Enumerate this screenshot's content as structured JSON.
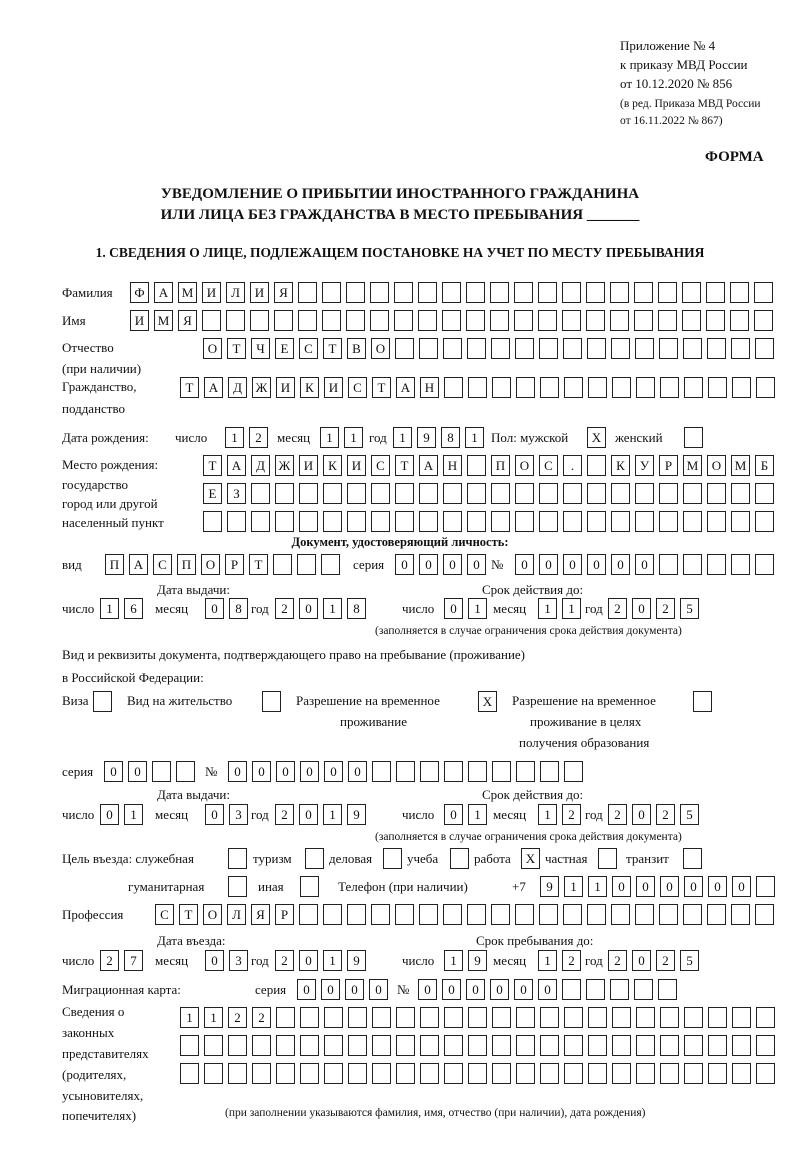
{
  "header": {
    "appendix": [
      "Приложение № 4",
      "к приказу МВД России",
      "от 10.12.2020 № 856"
    ],
    "revision": [
      "(в ред. Приказа МВД России",
      "от 16.11.2022 № 867)"
    ],
    "form_label": "ФОРМА",
    "title": [
      "УВЕДОМЛЕНИЕ О ПРИБЫТИИ ИНОСТРАННОГО ГРАЖДАНИНА",
      "ИЛИ ЛИЦА БЕЗ ГРАЖДАНСТВА В МЕСТО ПРЕБЫВАНИЯ _______"
    ],
    "section1": "1. СВЕДЕНИЯ О ЛИЦЕ, ПОДЛЕЖАЩЕМ ПОСТАНОВКЕ НА УЧЕТ ПО МЕСТУ ПРЕБЫВАНИЯ"
  },
  "labels": {
    "surname": "Фамилия",
    "name": "Имя",
    "patronymic": "Отчество",
    "patronymic_note": "(при наличии)",
    "citizenship": "Гражданство,",
    "citizenship2": "подданство",
    "birth_date": "Дата рождения:",
    "day": "число",
    "month": "месяц",
    "year": "год",
    "sex": "Пол: мужской",
    "female": "женский",
    "birthplace": [
      "Место рождения:",
      "государство",
      "город или другой",
      "населенный пункт"
    ],
    "id_doc": "Документ, удостоверяющий личность:",
    "kind": "вид",
    "series": "серия",
    "number": "№",
    "issue_date": "Дата выдачи:",
    "valid_until": "Срок действия до:",
    "validity_note": "(заполняется в случае ограничения срока действия документа)",
    "right_doc": "Вид и реквизиты документа, подтверждающего право на пребывание (проживание)",
    "right_doc2": "в Российской Федерации:",
    "visa": "Виза",
    "residence": "Вид на жительство",
    "temp_res": [
      "Разрешение на временное",
      "проживание"
    ],
    "temp_res_edu": [
      "Разрешение на временное",
      "проживание в целях",
      "получения образования"
    ],
    "purpose": "Цель въезда: служебная",
    "tourism": "туризм",
    "business": "деловая",
    "study": "учеба",
    "work": "работа",
    "private": "частная",
    "transit": "транзит",
    "humanitarian": "гуманитарная",
    "other": "иная",
    "phone": "Телефон (при наличии)",
    "phone_prefix": "+7",
    "profession": "Профессия",
    "entry_date": "Дата въезда:",
    "stay_until": "Срок пребывания до:",
    "migration_card": "Миграционная карта:",
    "reps": [
      "Сведения о",
      "законных",
      "представителях",
      "(родителях,",
      "усыновителях,",
      "попечителях)"
    ],
    "reps_note": "(при заполнении указываются фамилия, имя, отчество (при наличии), дата рождения)"
  },
  "fields": {
    "surname": [
      "Ф",
      "А",
      "М",
      "И",
      "Л",
      "И",
      "Я",
      "",
      "",
      "",
      "",
      "",
      "",
      "",
      "",
      "",
      "",
      "",
      "",
      "",
      "",
      "",
      "",
      "",
      "",
      "",
      ""
    ],
    "name": [
      "И",
      "М",
      "Я",
      "",
      "",
      "",
      "",
      "",
      "",
      "",
      "",
      "",
      "",
      "",
      "",
      "",
      "",
      "",
      "",
      "",
      "",
      "",
      "",
      "",
      "",
      "",
      ""
    ],
    "patronymic": [
      "О",
      "Т",
      "Ч",
      "Е",
      "С",
      "Т",
      "В",
      "О",
      "",
      "",
      "",
      "",
      "",
      "",
      "",
      "",
      "",
      "",
      "",
      "",
      "",
      "",
      "",
      ""
    ],
    "citizenship": [
      "Т",
      "А",
      "Д",
      "Ж",
      "И",
      "К",
      "И",
      "С",
      "Т",
      "А",
      "Н",
      "",
      "",
      "",
      "",
      "",
      "",
      "",
      "",
      "",
      "",
      "",
      "",
      "",
      ""
    ],
    "birth_day": [
      "1",
      "2"
    ],
    "birth_month": [
      "1",
      "1"
    ],
    "birth_year": [
      "1",
      "9",
      "8",
      "1"
    ],
    "male": [
      "X"
    ],
    "female": [
      ""
    ],
    "birthplace1": [
      "Т",
      "А",
      "Д",
      "Ж",
      "И",
      "К",
      "И",
      "С",
      "Т",
      "А",
      "Н",
      "",
      "П",
      "О",
      "С",
      ".",
      "",
      "К",
      "У",
      "Р",
      "М",
      "О",
      "М",
      "Б"
    ],
    "birthplace2": [
      "Е",
      "З",
      "",
      "",
      "",
      "",
      "",
      "",
      "",
      "",
      "",
      "",
      "",
      "",
      "",
      "",
      "",
      "",
      "",
      "",
      "",
      "",
      "",
      ""
    ],
    "birthplace3": [
      "",
      "",
      "",
      "",
      "",
      "",
      "",
      "",
      "",
      "",
      "",
      "",
      "",
      "",
      "",
      "",
      "",
      "",
      "",
      "",
      "",
      "",
      "",
      ""
    ],
    "doc_kind": [
      "П",
      "А",
      "С",
      "П",
      "О",
      "Р",
      "Т",
      "",
      "",
      ""
    ],
    "doc_series": [
      "0",
      "0",
      "0",
      "0"
    ],
    "doc_number": [
      "0",
      "0",
      "0",
      "0",
      "0",
      "0",
      "",
      "",
      "",
      "",
      ""
    ],
    "doc_issue_day": [
      "1",
      "6"
    ],
    "doc_issue_month": [
      "0",
      "8"
    ],
    "doc_issue_year": [
      "2",
      "0",
      "1",
      "8"
    ],
    "doc_valid_day": [
      "0",
      "1"
    ],
    "doc_valid_month": [
      "1",
      "1"
    ],
    "doc_valid_year": [
      "2",
      "0",
      "2",
      "5"
    ],
    "visa": [
      ""
    ],
    "residence": [
      ""
    ],
    "temp_res": [
      "X"
    ],
    "temp_res_edu": [
      ""
    ],
    "right_series": [
      "0",
      "0",
      "",
      ""
    ],
    "right_number": [
      "0",
      "0",
      "0",
      "0",
      "0",
      "0",
      "",
      "",
      "",
      "",
      "",
      "",
      "",
      "",
      ""
    ],
    "right_issue_day": [
      "0",
      "1"
    ],
    "right_issue_month": [
      "0",
      "3"
    ],
    "right_issue_year": [
      "2",
      "0",
      "1",
      "9"
    ],
    "right_valid_day": [
      "0",
      "1"
    ],
    "right_valid_month": [
      "1",
      "2"
    ],
    "right_valid_year": [
      "2",
      "0",
      "2",
      "5"
    ],
    "purpose_service": [
      ""
    ],
    "purpose_tourism": [
      ""
    ],
    "purpose_business": [
      ""
    ],
    "purpose_study": [
      ""
    ],
    "purpose_work": [
      "X"
    ],
    "purpose_private": [
      ""
    ],
    "purpose_transit": [
      ""
    ],
    "purpose_humanitarian": [
      ""
    ],
    "purpose_other": [
      ""
    ],
    "phone": [
      "9",
      "1",
      "1",
      "0",
      "0",
      "0",
      "0",
      "0",
      "0",
      ""
    ],
    "profession": [
      "С",
      "Т",
      "О",
      "Л",
      "Я",
      "Р",
      "",
      "",
      "",
      "",
      "",
      "",
      "",
      "",
      "",
      "",
      "",
      "",
      "",
      "",
      "",
      "",
      "",
      "",
      "",
      ""
    ],
    "entry_day": [
      "2",
      "7"
    ],
    "entry_month": [
      "0",
      "3"
    ],
    "entry_year": [
      "2",
      "0",
      "1",
      "9"
    ],
    "stay_day": [
      "1",
      "9"
    ],
    "stay_month": [
      "1",
      "2"
    ],
    "stay_year": [
      "2",
      "0",
      "2",
      "5"
    ],
    "mc_series": [
      "0",
      "0",
      "0",
      "0"
    ],
    "mc_number": [
      "0",
      "0",
      "0",
      "0",
      "0",
      "0",
      "",
      "",
      "",
      "",
      ""
    ],
    "reps1": [
      "1",
      "1",
      "2",
      "2",
      "",
      "",
      "",
      "",
      "",
      "",
      "",
      "",
      "",
      "",
      "",
      "",
      "",
      "",
      "",
      "",
      "",
      "",
      "",
      "",
      ""
    ],
    "reps2": [
      "",
      "",
      "",
      "",
      "",
      "",
      "",
      "",
      "",
      "",
      "",
      "",
      "",
      "",
      "",
      "",
      "",
      "",
      "",
      "",
      "",
      "",
      "",
      "",
      ""
    ],
    "reps3": [
      "",
      "",
      "",
      "",
      "",
      "",
      "",
      "",
      "",
      "",
      "",
      "",
      "",
      "",
      "",
      "",
      "",
      "",
      "",
      "",
      "",
      "",
      "",
      "",
      ""
    ]
  }
}
